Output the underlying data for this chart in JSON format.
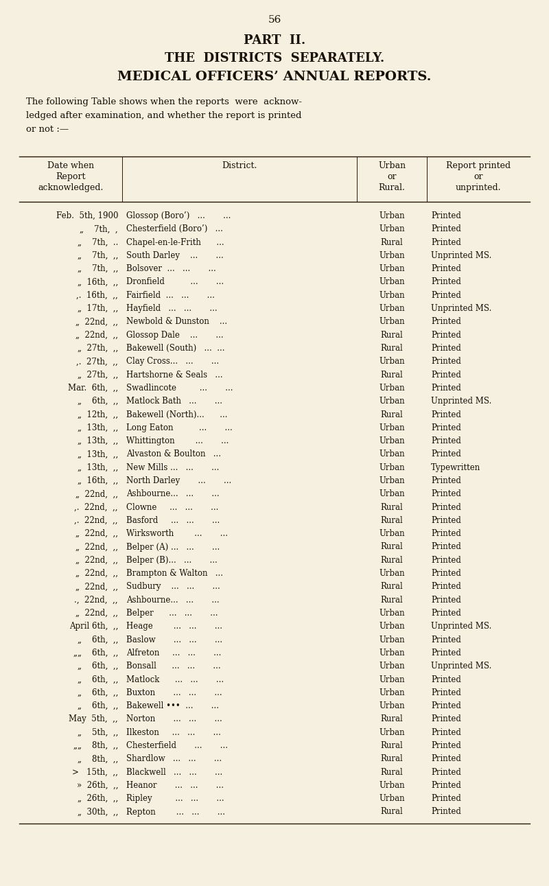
{
  "page_number": "56",
  "title1": "PART  II.",
  "title2": "THE  DISTRICTS  SEPARATELY.",
  "title3": "MEDICAL OFFICERS’ ANNUAL REPORTS.",
  "intro_lines": [
    "The following Table shows when the reports  were  acknow-",
    "ledged after examination, and whether the report is printed",
    "or not :—"
  ],
  "col_headers": [
    [
      "Date when",
      "Report",
      "acknowledged."
    ],
    [
      "District."
    ],
    [
      "Urban",
      "or",
      "Rural."
    ],
    [
      "Report printed",
      "or",
      "unprinted."
    ]
  ],
  "rows": [
    [
      "Feb.  5th, 1900",
      "Glossop (Boro’)   ...       ...",
      "Urban",
      "Printed"
    ],
    [
      "„    7th,  ,",
      "Chesterfield (Boro’)   ...",
      "Urban",
      "Printed"
    ],
    [
      "„    7th,  ..",
      "Chapel-en-le-Frith      ...",
      "Rural",
      "Printed"
    ],
    [
      "„    7th,  ,,",
      "South Darley    ...       ...",
      "Urban",
      "Unprinted MS."
    ],
    [
      "„    7th,  ,,",
      "Bolsover  ...   ...       ...",
      "Urban",
      "Printed"
    ],
    [
      "„  16th,  ,,",
      "Dronfield          ...       ...",
      "Urban",
      "Printed"
    ],
    [
      ",.  16th,  ,,",
      "Fairfield  ...   ...       ...",
      "Urban",
      "Printed"
    ],
    [
      "„  17th,  ,,",
      "Hayfield   ...   ...       ...",
      "Urban",
      "Unprinted MS."
    ],
    [
      "„  22nd,  ,,",
      "Newbold & Dunston    ...",
      "Urban",
      "Printed"
    ],
    [
      "„  22nd,  ,,",
      "Glossop Dale    ...       ...",
      "Rural",
      "Printed"
    ],
    [
      "„  27th,  ,,",
      "Bakewell (South)   ...  ...",
      "Rural",
      "Printed"
    ],
    [
      ",.  27th,  ,,",
      "Clay Cross...   ...       ...",
      "Urban",
      "Printed"
    ],
    [
      "„  27th,  ,,",
      "Hartshorne & Seals   ...",
      "Rural",
      "Printed"
    ],
    [
      "Mar.  6th,  ,,",
      "Swadlincote         ...       ...",
      "Urban",
      "Printed"
    ],
    [
      "„    6th,  ,,",
      "Matlock Bath   ...       ...",
      "Urban",
      "Unprinted MS."
    ],
    [
      "„  12th,  ,,",
      "Bakewell (North)...      ...",
      "Rural",
      "Printed"
    ],
    [
      "„  13th,  ,,",
      "Long Eaton          ...       ...",
      "Urban",
      "Printed"
    ],
    [
      "„  13th,  ,,",
      "Whittington        ...       ...",
      "Urban",
      "Printed"
    ],
    [
      "„  13th,  ,,",
      "Alvaston & Boulton   ...",
      "Urban",
      "Printed"
    ],
    [
      "„  13th,  ,,",
      "New Mills ...   ...       ...",
      "Urban",
      "Typewritten"
    ],
    [
      "„  16th,  ,,",
      "North Darley       ...       ...",
      "Urban",
      "Printed"
    ],
    [
      "„  22nd,  ,,",
      "Ashbourne...   ...       ...",
      "Urban",
      "Printed"
    ],
    [
      ",.  22nd,  ,,",
      "Clowne     ...   ...       ...",
      "Rural",
      "Printed"
    ],
    [
      ",.  22nd,  ,,",
      "Basford     ...   ...       ...",
      "Rural",
      "Printed"
    ],
    [
      "„  22nd,  ,,",
      "Wirksworth        ...       ...",
      "Urban",
      "Printed"
    ],
    [
      "„  22nd,  ,,",
      "Belper (A) ...   ...       ...",
      "Rural",
      "Printed"
    ],
    [
      "„  22nd,  ,,",
      "Belper (B)...   ...       ...",
      "Rural",
      "Printed"
    ],
    [
      "„  22nd,  ,,",
      "Brampton & Walton   ...",
      "Urban",
      "Printed"
    ],
    [
      "„  22nd,  ,,",
      "Sudbury    ...   ...       ...",
      "Rural",
      "Printed"
    ],
    [
      ".,  22nd,  ,,",
      "Ashbourne...   ...       ...",
      "Rural",
      "Printed"
    ],
    [
      "„  22nd,  ,,",
      "Belper      ...   ...       ...",
      "Urban",
      "Printed"
    ],
    [
      "April 6th,  ,,",
      "Heage        ...   ...       ...",
      "Urban",
      "Unprinted MS."
    ],
    [
      "„    6th,  ,,",
      "Baslow       ...   ...       ...",
      "Urban",
      "Printed"
    ],
    [
      "„„    6th,  ,,",
      "Alfreton     ...   ...       ...",
      "Urban",
      "Printed"
    ],
    [
      "„    6th,  ,,",
      "Bonsall      ...   ...       ...",
      "Urban",
      "Unprinted MS."
    ],
    [
      "„    6th,  ,,",
      "Matlock      ...   ...       ...",
      "Urban",
      "Printed"
    ],
    [
      "„    6th,  ,,",
      "Buxton       ...   ...       ...",
      "Urban",
      "Printed"
    ],
    [
      "„    6th,  ,,",
      "Bakewell •••  ...       ...",
      "Urban",
      "Printed"
    ],
    [
      "May  5th,  ,,",
      "Norton       ...   ...       ...",
      "Rural",
      "Printed"
    ],
    [
      "„    5th,  ,,",
      "Ilkeston     ...   ...       ...",
      "Urban",
      "Printed"
    ],
    [
      "„„    8th,  ,,",
      "Chesterfield       ...       ...",
      "Rural",
      "Printed"
    ],
    [
      "„    8th,  ,,",
      "Shardlow   ...   ...       ...",
      "Rural",
      "Printed"
    ],
    [
      ">   15th,  ,,",
      "Blackwell   ...   ...       ...",
      "Rural",
      "Printed"
    ],
    [
      "»  26th,  ,,",
      "Heanor       ...   ...       ...",
      "Urban",
      "Printed"
    ],
    [
      "„  26th,  ,,",
      "Ripley         ...   ...       ...",
      "Urban",
      "Printed"
    ],
    [
      "„  30th,  ,,",
      "Repton        ...   ...       ...",
      "Rural",
      "Printed"
    ]
  ],
  "bg_color": "#f5f0e0",
  "text_color": "#1a1008",
  "line_color": "#2a1a08"
}
